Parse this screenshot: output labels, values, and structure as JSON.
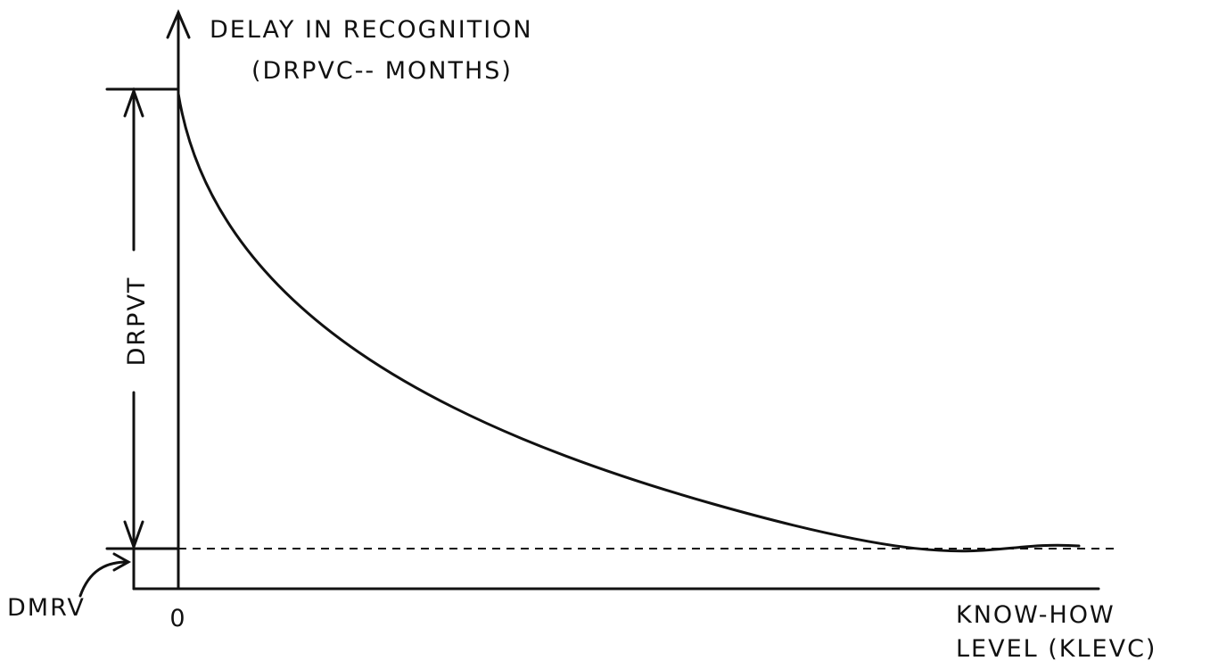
{
  "axes": {
    "y_label": [
      "DELAY IN RECOGNITION",
      "(DRPVC-- MONTHS)"
    ],
    "x_label": [
      "KNOW-HOW",
      "LEVEL (KLEVC)"
    ],
    "origin_label": "0"
  },
  "annotations": {
    "range": "DRPVT",
    "minimum": "DMRV"
  }
}
